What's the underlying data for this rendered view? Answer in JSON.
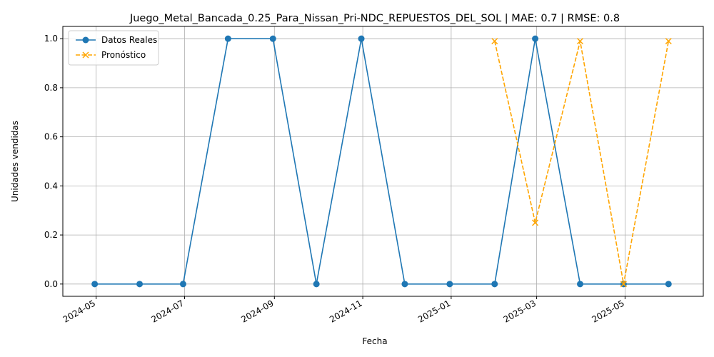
{
  "chart_data": {
    "type": "line",
    "title": "Juego_Metal_Bancada_0.25_Para_Nissan_Pri-NDC_REPUESTOS_DEL_SOL | MAE: 0.7 | RMSE: 0.8",
    "xlabel": "Fecha",
    "ylabel": "Unidades vendidas",
    "x_axis": "date",
    "xlim": [
      "2024-04-08",
      "2025-06-24"
    ],
    "ylim": [
      -0.05,
      1.05
    ],
    "x_ticks": [
      {
        "date": "2024-05-01",
        "label": "2024-05"
      },
      {
        "date": "2024-07-01",
        "label": "2024-07"
      },
      {
        "date": "2024-09-01",
        "label": "2024-09"
      },
      {
        "date": "2024-11-01",
        "label": "2024-11"
      },
      {
        "date": "2025-01-01",
        "label": "2025-01"
      },
      {
        "date": "2025-03-01",
        "label": "2025-03"
      },
      {
        "date": "2025-05-01",
        "label": "2025-05"
      }
    ],
    "y_ticks": [
      {
        "value": 0.0,
        "label": "0.0"
      },
      {
        "value": 0.2,
        "label": "0.2"
      },
      {
        "value": 0.4,
        "label": "0.4"
      },
      {
        "value": 0.6,
        "label": "0.6"
      },
      {
        "value": 0.8,
        "label": "0.8"
      },
      {
        "value": 1.0,
        "label": "1.0"
      }
    ],
    "grid": true,
    "legend_position": "top-left",
    "series": [
      {
        "name": "Datos Reales",
        "color": "#1f77b4",
        "line_style": "solid",
        "marker": "circle",
        "points": [
          {
            "x": "2024-04-30",
            "y": 0
          },
          {
            "x": "2024-05-31",
            "y": 0
          },
          {
            "x": "2024-06-30",
            "y": 0
          },
          {
            "x": "2024-07-31",
            "y": 1
          },
          {
            "x": "2024-08-31",
            "y": 1
          },
          {
            "x": "2024-09-30",
            "y": 0
          },
          {
            "x": "2024-10-31",
            "y": 1
          },
          {
            "x": "2024-11-30",
            "y": 0
          },
          {
            "x": "2024-12-31",
            "y": 0
          },
          {
            "x": "2025-01-31",
            "y": 0
          },
          {
            "x": "2025-02-28",
            "y": 1
          },
          {
            "x": "2025-03-31",
            "y": 0
          },
          {
            "x": "2025-04-30",
            "y": 0
          },
          {
            "x": "2025-05-31",
            "y": 0
          }
        ]
      },
      {
        "name": "Pronóstico",
        "color": "#ffa500",
        "line_style": "dashed",
        "marker": "x",
        "points": [
          {
            "x": "2025-01-31",
            "y": 0.99
          },
          {
            "x": "2025-02-28",
            "y": 0.25
          },
          {
            "x": "2025-03-31",
            "y": 0.99
          },
          {
            "x": "2025-04-30",
            "y": 0.0
          },
          {
            "x": "2025-05-31",
            "y": 0.99
          }
        ]
      }
    ]
  }
}
